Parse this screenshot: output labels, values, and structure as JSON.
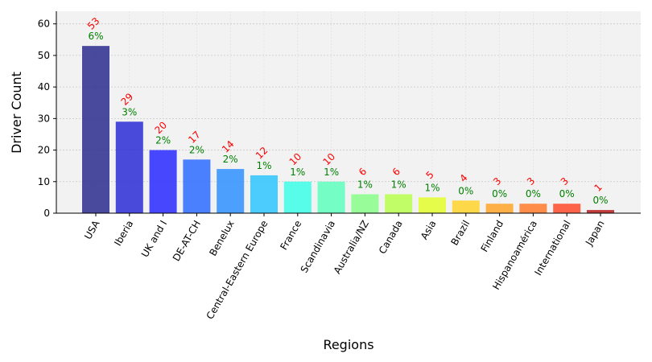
{
  "chart_data": {
    "type": "bar",
    "title": "",
    "xlabel": "Regions",
    "ylabel": "Driver Count",
    "ylim": [
      0,
      64
    ],
    "yticks": [
      0,
      10,
      20,
      30,
      40,
      50,
      60
    ],
    "grid": true,
    "categories": [
      "USA",
      "Iberia",
      "UK and I",
      "DE-AT-CH",
      "Benelux",
      "Central-Eastern Europe",
      "France",
      "Scandinavia",
      "Australia/NZ",
      "Canada",
      "Asia",
      "Brazil",
      "Finland",
      "Hispanoamérica",
      "International",
      "Japan"
    ],
    "values": [
      53,
      29,
      20,
      17,
      14,
      12,
      10,
      10,
      6,
      6,
      5,
      4,
      3,
      3,
      3,
      1
    ],
    "percent_labels": [
      "6%",
      "3%",
      "2%",
      "2%",
      "2%",
      "1%",
      "1%",
      "1%",
      "1%",
      "1%",
      "1%",
      "0%",
      "0%",
      "0%",
      "0%",
      "0%"
    ],
    "count_labels": [
      "53",
      "29",
      "20",
      "17",
      "14",
      "12",
      "10",
      "10",
      "6",
      "6",
      "5",
      "4",
      "3",
      "3",
      "3",
      "1"
    ],
    "colors": [
      "#2b2b8f",
      "#2b2bd6",
      "#2929ff",
      "#2d6bff",
      "#2f90ff",
      "#2fc6ff",
      "#3cffe6",
      "#5effbc",
      "#88ff88",
      "#b7ff4e",
      "#e3ff2d",
      "#ffd42a",
      "#ffa52a",
      "#ff7b2a",
      "#ff4a2a",
      "#b71c1c"
    ],
    "count_label_color": "#ff0000",
    "percent_label_color": "#008000"
  }
}
